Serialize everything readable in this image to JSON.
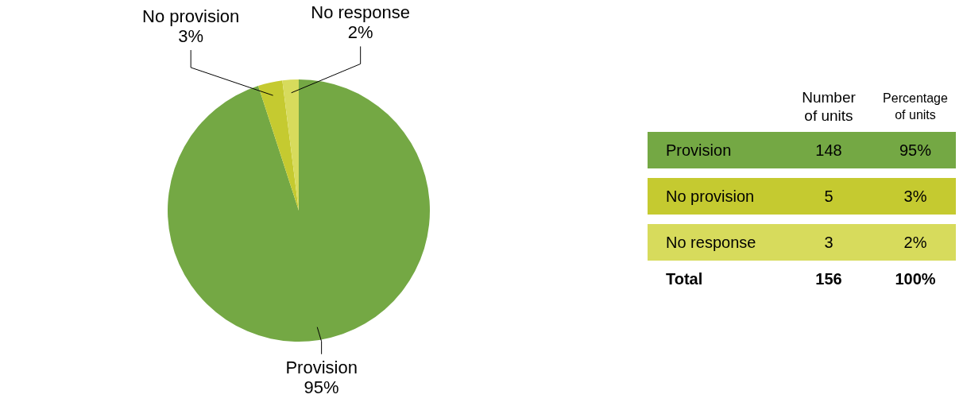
{
  "chart_data": {
    "type": "pie",
    "categories": [
      "Provision",
      "No provision",
      "No response"
    ],
    "values": [
      95,
      3,
      2
    ],
    "colors": [
      "#74a844",
      "#c5ca30",
      "#d7db5c"
    ],
    "value_labels": [
      "95%",
      "3%",
      "2%"
    ],
    "totals": [
      "156",
      "100%"
    ],
    "annotations": [
      "Number of units",
      "Percentage of units",
      "148",
      "5",
      "3",
      "Total"
    ]
  }
}
